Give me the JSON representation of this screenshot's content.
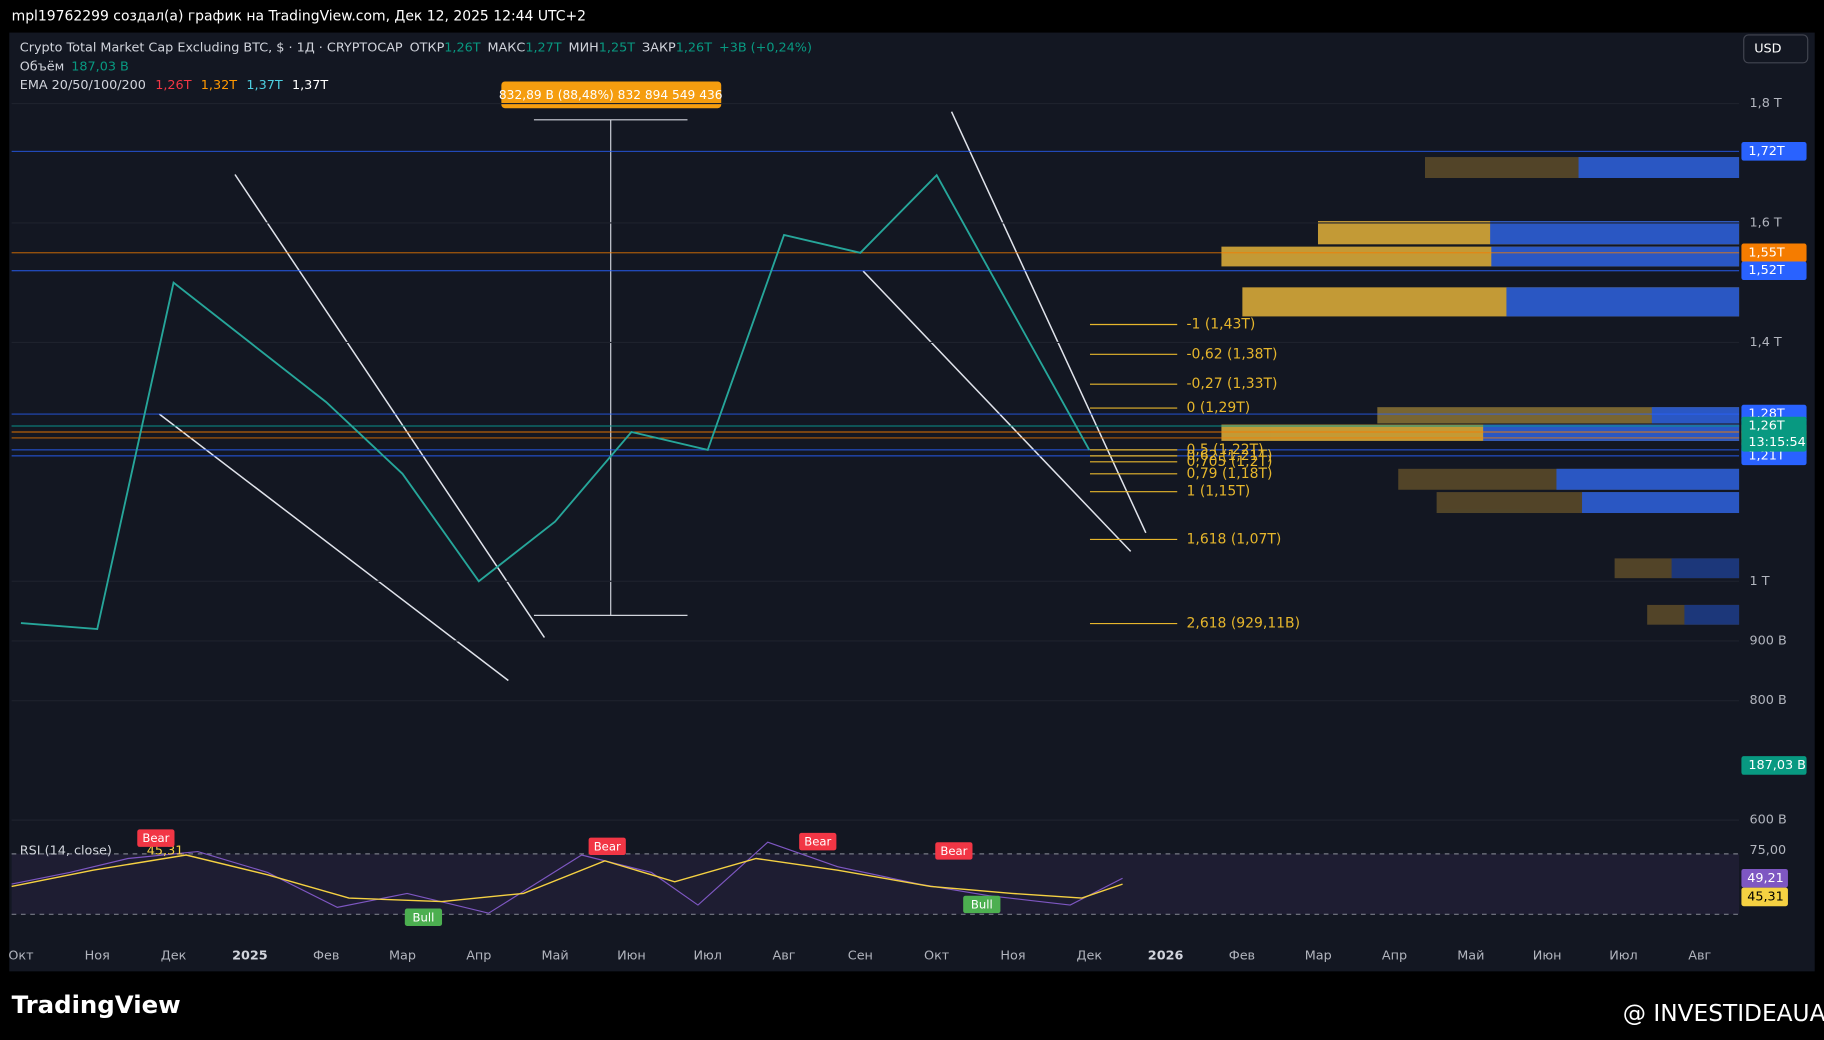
{
  "header": {
    "caption": "mpl19762299 создал(а) график на TradingView.com, Дек 12, 2025 12:44 UTC+2"
  },
  "legend": {
    "symbol": "Crypto Total Market Cap Excluding BTC, $ · 1Д · CRYPTOCAP",
    "ohlc": [
      {
        "label": "ОТКР",
        "value": "1,26T"
      },
      {
        "label": "МАКС",
        "value": "1,27T"
      },
      {
        "label": "МИН",
        "value": "1,25T"
      },
      {
        "label": "ЗАКР",
        "value": "1,26T"
      }
    ],
    "change": "+3B (+0,24%)",
    "volume_label": "Объём",
    "volume_value": "187,03 B",
    "ema_label": "EMA 20/50/100/200",
    "ema_values": [
      {
        "value": "1,26T",
        "color": "#f23645"
      },
      {
        "value": "1,32T",
        "color": "#ff9800"
      },
      {
        "value": "1,37T",
        "color": "#4dd0e1"
      },
      {
        "value": "1,37T",
        "color": "#ffffff"
      }
    ]
  },
  "currency": "USD",
  "measure": "832,89 B (88,48%) 832 894 549 436",
  "chart_data": {
    "type": "line",
    "color": "#26a69a",
    "categories": [
      "Окт",
      "Ноя",
      "Дек",
      "2025",
      "Фев",
      "Мар",
      "Апр",
      "Май",
      "Июн",
      "Июл",
      "Авг",
      "Сен",
      "Окт",
      "Ноя",
      "Дек",
      "2026",
      "Фев",
      "Мар",
      "Апр",
      "Май",
      "Июн",
      "Июл",
      "Авг"
    ],
    "values": [
      0.93,
      0.92,
      1.5,
      1.4,
      1.3,
      1.18,
      1.0,
      1.1,
      1.25,
      1.22,
      1.58,
      1.55,
      1.68,
      1.45,
      1.22,
      null,
      null,
      null,
      null,
      null,
      null,
      null,
      null
    ],
    "ylim": [
      0.57,
      1.87
    ],
    "yticks": [
      {
        "value": 1.8,
        "label": "1,8 T"
      },
      {
        "value": 1.6,
        "label": "1,6 T"
      },
      {
        "value": 1.4,
        "label": "1,4 T"
      },
      {
        "value": 1,
        "label": "1 T"
      },
      {
        "value": 0.9,
        "label": "900 B"
      },
      {
        "value": 0.8,
        "label": "800 B"
      },
      {
        "value": 0.6,
        "label": "600 B"
      }
    ],
    "grid": true
  },
  "fib_levels": [
    {
      "value": 1.43,
      "label": "-1 (1,43T)"
    },
    {
      "value": 1.38,
      "label": "-0,62 (1,38T)"
    },
    {
      "value": 1.33,
      "label": "-0,27 (1,33T)"
    },
    {
      "value": 1.29,
      "label": "0 (1,29T)"
    },
    {
      "value": 1.22,
      "label": "0,5 (1,22T)"
    },
    {
      "value": 1.21,
      "label": "0,62 (1,21T)"
    },
    {
      "value": 1.2,
      "label": "0,705 (1,2T)"
    },
    {
      "value": 1.18,
      "label": "0,79 (1,18T)"
    },
    {
      "value": 1.15,
      "label": "1 (1,15T)"
    },
    {
      "value": 1.07,
      "label": "1,618 (1,07T)"
    },
    {
      "value": 0.92911,
      "label": "2,618 (929,11B)"
    }
  ],
  "price_levels": [
    {
      "value": 1.72,
      "label": "1,72T",
      "color": "#2962ff"
    },
    {
      "value": 1.55,
      "label": "1,55T",
      "color": "#f57c00"
    },
    {
      "value": 1.52,
      "label": "1,52T",
      "color": "#2962ff"
    },
    {
      "value": 1.28,
      "label": "1,28T",
      "color": "#2962ff"
    },
    {
      "value": 1.26,
      "label": "1,26T",
      "color": "#2962ff"
    },
    {
      "value": 1.25,
      "label": "1,25T",
      "color": "#f57c00"
    },
    {
      "value": 1.24,
      "label": "1,24T",
      "color": "#f57c00"
    },
    {
      "value": 1.22,
      "label": "1,22T",
      "color": "#2962ff"
    },
    {
      "value": 1.21,
      "label": "1,21T",
      "color": "#2962ff"
    },
    {
      "value": 1.26,
      "label": "1,26T",
      "color": "#089981"
    }
  ],
  "countdown": "13:15:54",
  "volume_badge": "187,03 B",
  "rsi": {
    "label": "RSI (14, close)",
    "value": "45,31",
    "level": "75,00",
    "badges": [
      {
        "label": "49,21",
        "color": "#7e57c2"
      },
      {
        "label": "45,31",
        "color": "#f5d142"
      }
    ],
    "signals": [
      {
        "label": "Bear"
      },
      {
        "label": "Bull"
      },
      {
        "label": "Bear"
      },
      {
        "label": "Bear"
      },
      {
        "label": "Bull"
      },
      {
        "label": "Bear"
      }
    ]
  },
  "footer": {
    "brand": "TradingView",
    "watermark": "@ INVESTIDEAUA"
  }
}
